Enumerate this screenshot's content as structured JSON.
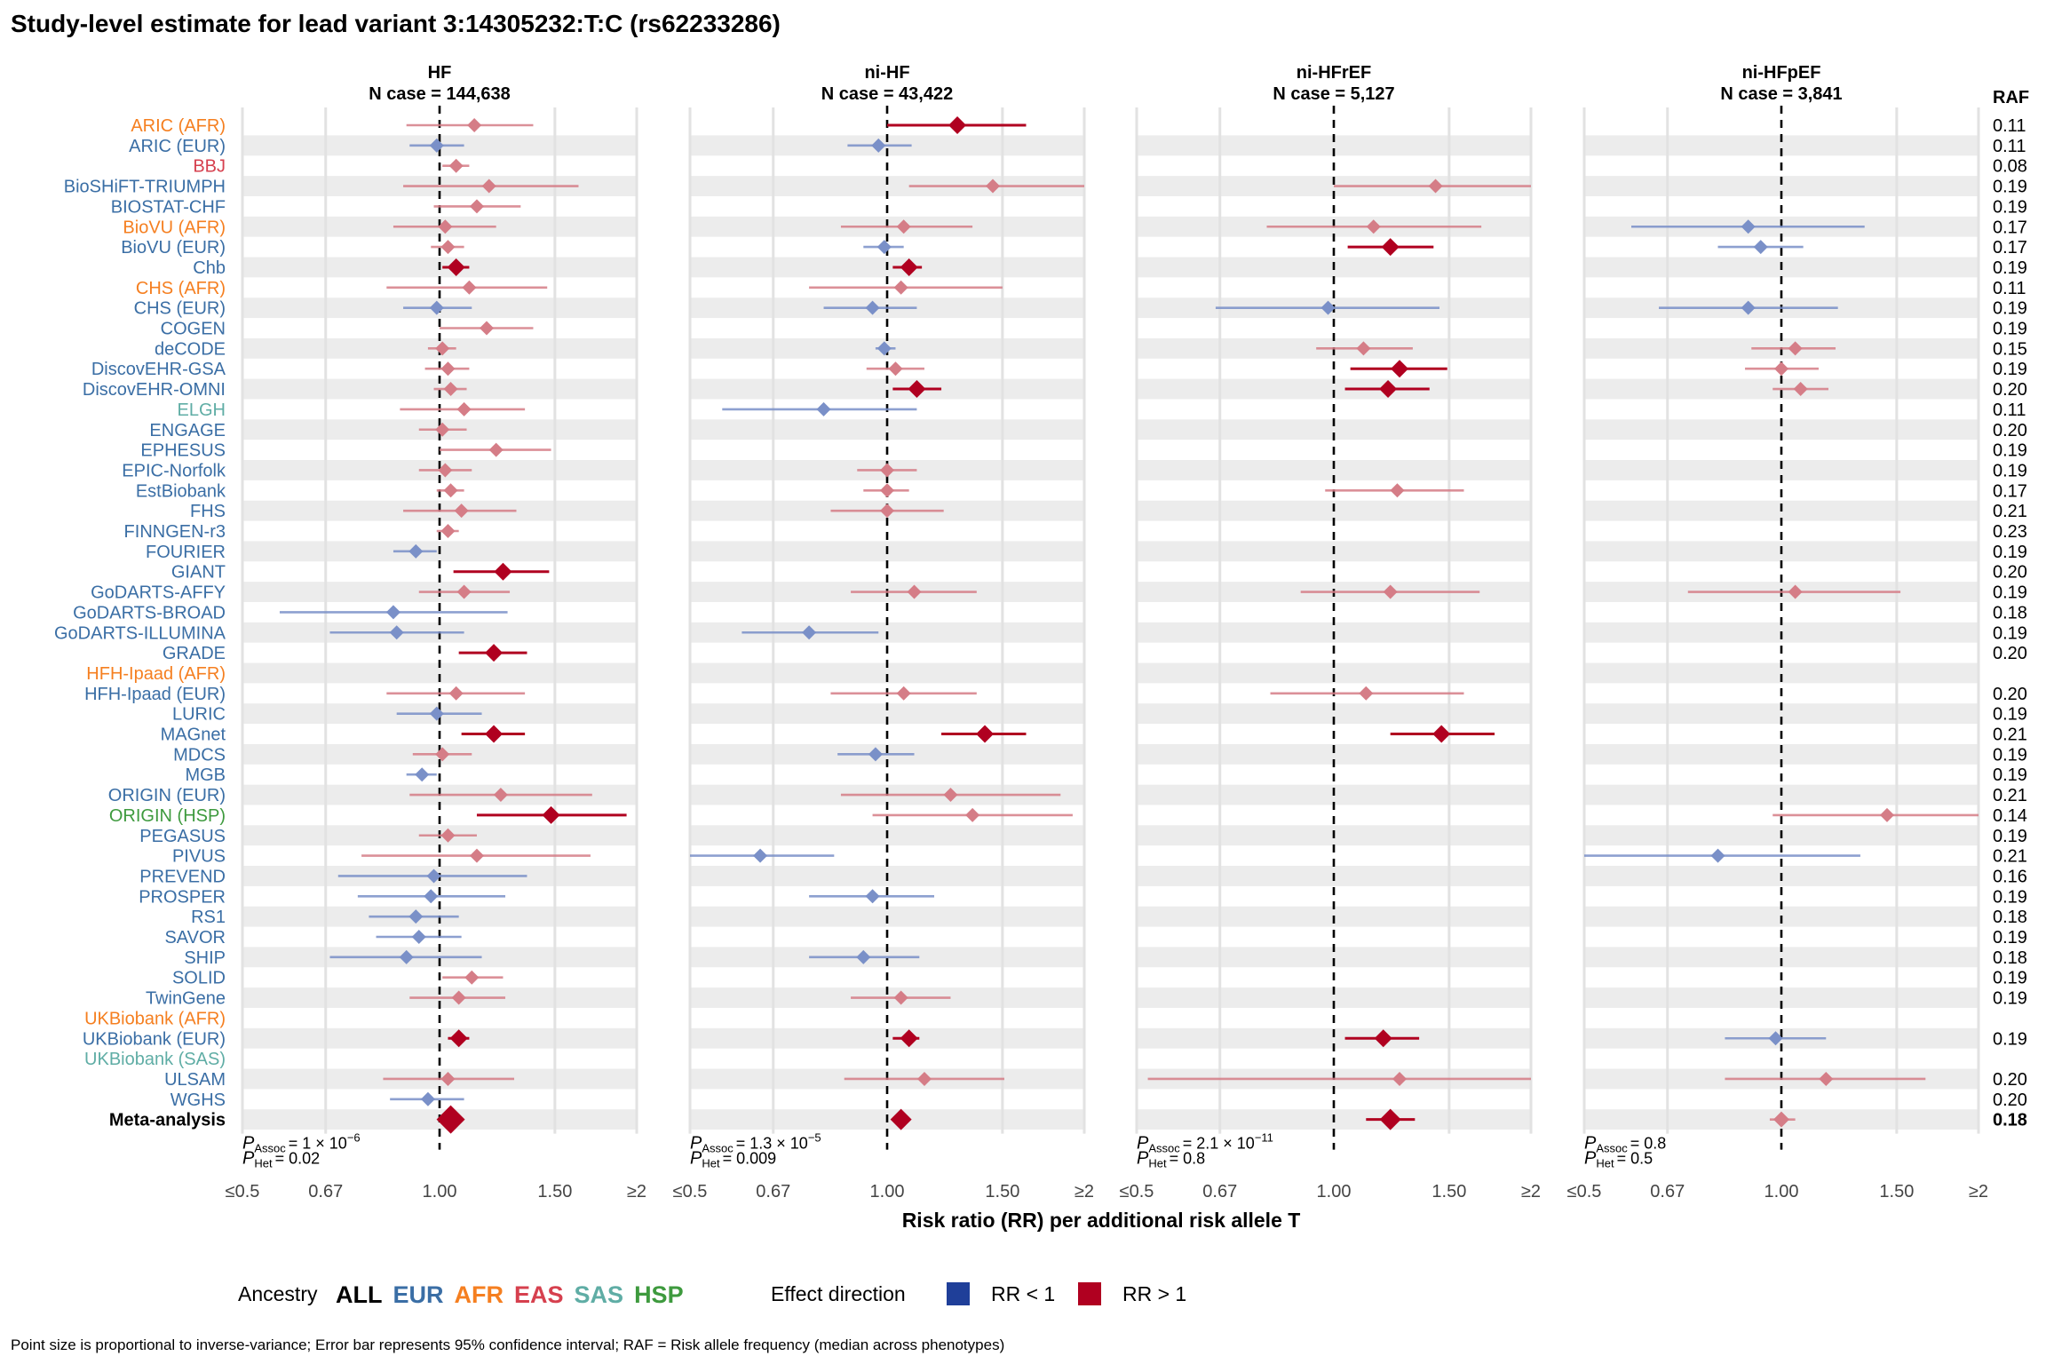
{
  "title": "Study-level estimate for lead variant 3:14305232:T:C (rs62233286)",
  "colors": {
    "EUR": "#3a6ea5",
    "AFR": "#f57f20",
    "EAS": "#d6404e",
    "SAS": "#5fada5",
    "HSP": "#3e9a3e",
    "ALL": "#000000",
    "rr_below": "#1f3f99",
    "rr_above": "#b00020"
  },
  "raf_header": "RAF",
  "x_axis_title": "Risk ratio (RR) per additional risk allele T",
  "x_ticks": [
    "≤0.5",
    "0.67",
    "1.00",
    "1.50",
    "≥2"
  ],
  "legend": {
    "ancestry_label": "Ancestry",
    "ancestries": [
      "ALL",
      "EUR",
      "AFR",
      "EAS",
      "SAS",
      "HSP"
    ],
    "effect_label": "Effect direction",
    "rr_below_label": "RR < 1",
    "rr_above_label": "RR > 1"
  },
  "footnote": "Point size is proportional to inverse-variance; Error bar represents 95% confidence interval; RAF = Risk allele frequency (median across phenotypes)",
  "chart_data": {
    "type": "forest",
    "x_scale": "log",
    "xlim": [
      0.5,
      2
    ],
    "reference_line": 1.0,
    "studies": [
      {
        "name": "ARIC (AFR)",
        "ancestry": "AFR",
        "raf": "0.11"
      },
      {
        "name": "ARIC (EUR)",
        "ancestry": "EUR",
        "raf": "0.11"
      },
      {
        "name": "BBJ",
        "ancestry": "EAS",
        "raf": "0.08"
      },
      {
        "name": "BioSHiFT-TRIUMPH",
        "ancestry": "EUR",
        "raf": "0.19"
      },
      {
        "name": "BIOSTAT-CHF",
        "ancestry": "EUR",
        "raf": "0.19"
      },
      {
        "name": "BioVU (AFR)",
        "ancestry": "AFR",
        "raf": "0.17"
      },
      {
        "name": "BioVU (EUR)",
        "ancestry": "EUR",
        "raf": "0.17"
      },
      {
        "name": "Chb",
        "ancestry": "EUR",
        "raf": "0.19"
      },
      {
        "name": "CHS (AFR)",
        "ancestry": "AFR",
        "raf": "0.11"
      },
      {
        "name": "CHS (EUR)",
        "ancestry": "EUR",
        "raf": "0.19"
      },
      {
        "name": "COGEN",
        "ancestry": "EUR",
        "raf": "0.19"
      },
      {
        "name": "deCODE",
        "ancestry": "EUR",
        "raf": "0.15"
      },
      {
        "name": "DiscovEHR-GSA",
        "ancestry": "EUR",
        "raf": "0.19"
      },
      {
        "name": "DiscovEHR-OMNI",
        "ancestry": "EUR",
        "raf": "0.20"
      },
      {
        "name": "ELGH",
        "ancestry": "SAS",
        "raf": "0.11"
      },
      {
        "name": "ENGAGE",
        "ancestry": "EUR",
        "raf": "0.20"
      },
      {
        "name": "EPHESUS",
        "ancestry": "EUR",
        "raf": "0.19"
      },
      {
        "name": "EPIC-Norfolk",
        "ancestry": "EUR",
        "raf": "0.19"
      },
      {
        "name": "EstBiobank",
        "ancestry": "EUR",
        "raf": "0.17"
      },
      {
        "name": "FHS",
        "ancestry": "EUR",
        "raf": "0.21"
      },
      {
        "name": "FINNGEN-r3",
        "ancestry": "EUR",
        "raf": "0.23"
      },
      {
        "name": "FOURIER",
        "ancestry": "EUR",
        "raf": "0.19"
      },
      {
        "name": "GIANT",
        "ancestry": "EUR",
        "raf": "0.20"
      },
      {
        "name": "GoDARTS-AFFY",
        "ancestry": "EUR",
        "raf": "0.19"
      },
      {
        "name": "GoDARTS-BROAD",
        "ancestry": "EUR",
        "raf": "0.18"
      },
      {
        "name": "GoDARTS-ILLUMINA",
        "ancestry": "EUR",
        "raf": "0.19"
      },
      {
        "name": "GRADE",
        "ancestry": "EUR",
        "raf": "0.20"
      },
      {
        "name": "HFH-Ipaad (AFR)",
        "ancestry": "AFR",
        "raf": ""
      },
      {
        "name": "HFH-Ipaad (EUR)",
        "ancestry": "EUR",
        "raf": "0.20"
      },
      {
        "name": "LURIC",
        "ancestry": "EUR",
        "raf": "0.19"
      },
      {
        "name": "MAGnet",
        "ancestry": "EUR",
        "raf": "0.21"
      },
      {
        "name": "MDCS",
        "ancestry": "EUR",
        "raf": "0.19"
      },
      {
        "name": "MGB",
        "ancestry": "EUR",
        "raf": "0.19"
      },
      {
        "name": "ORIGIN (EUR)",
        "ancestry": "EUR",
        "raf": "0.21"
      },
      {
        "name": "ORIGIN (HSP)",
        "ancestry": "HSP",
        "raf": "0.14"
      },
      {
        "name": "PEGASUS",
        "ancestry": "EUR",
        "raf": "0.19"
      },
      {
        "name": "PIVUS",
        "ancestry": "EUR",
        "raf": "0.21"
      },
      {
        "name": "PREVEND",
        "ancestry": "EUR",
        "raf": "0.16"
      },
      {
        "name": "PROSPER",
        "ancestry": "EUR",
        "raf": "0.19"
      },
      {
        "name": "RS1",
        "ancestry": "EUR",
        "raf": "0.18"
      },
      {
        "name": "SAVOR",
        "ancestry": "EUR",
        "raf": "0.19"
      },
      {
        "name": "SHIP",
        "ancestry": "EUR",
        "raf": "0.18"
      },
      {
        "name": "SOLID",
        "ancestry": "EUR",
        "raf": "0.19"
      },
      {
        "name": "TwinGene",
        "ancestry": "EUR",
        "raf": "0.19"
      },
      {
        "name": "UKBiobank (AFR)",
        "ancestry": "AFR",
        "raf": ""
      },
      {
        "name": "UKBiobank (EUR)",
        "ancestry": "EUR",
        "raf": "0.19"
      },
      {
        "name": "UKBiobank (SAS)",
        "ancestry": "SAS",
        "raf": ""
      },
      {
        "name": "ULSAM",
        "ancestry": "EUR",
        "raf": "0.20"
      },
      {
        "name": "WGHS",
        "ancestry": "EUR",
        "raf": "0.20"
      },
      {
        "name": "Meta-analysis",
        "ancestry": "ALL",
        "raf": "0.18",
        "bold": true
      }
    ],
    "panels": [
      {
        "title": "HF",
        "n_case": "N case = 144,638",
        "p_assoc": "= 1 × 10",
        "p_assoc_exp": "−6",
        "p_het": "= 0.02",
        "estimates": [
          [
            1.13,
            0.89,
            1.39,
            "light"
          ],
          [
            0.99,
            0.9,
            1.09,
            "light"
          ],
          [
            1.06,
            1.01,
            1.11,
            "light"
          ],
          [
            1.19,
            0.88,
            1.63,
            "light"
          ],
          [
            1.14,
            0.98,
            1.33,
            "light"
          ],
          [
            1.02,
            0.85,
            1.22,
            "light"
          ],
          [
            1.03,
            0.97,
            1.09,
            "light"
          ],
          [
            1.06,
            1.01,
            1.11,
            "strong"
          ],
          [
            1.11,
            0.83,
            1.46,
            "light"
          ],
          [
            0.99,
            0.88,
            1.12,
            "light"
          ],
          [
            1.18,
            1.0,
            1.39,
            "light"
          ],
          [
            1.01,
            0.96,
            1.06,
            "light"
          ],
          [
            1.03,
            0.95,
            1.11,
            "light"
          ],
          [
            1.04,
            0.98,
            1.1,
            "light"
          ],
          [
            1.09,
            0.87,
            1.35,
            "light"
          ],
          [
            1.01,
            0.93,
            1.1,
            "light"
          ],
          [
            1.22,
            1.0,
            1.48,
            "light"
          ],
          [
            1.02,
            0.93,
            1.12,
            "light"
          ],
          [
            1.04,
            0.99,
            1.09,
            "light"
          ],
          [
            1.08,
            0.88,
            1.31,
            "light"
          ],
          [
            1.03,
            0.99,
            1.07,
            "light"
          ],
          [
            0.92,
            0.85,
            0.99,
            "light"
          ],
          [
            1.25,
            1.05,
            1.47,
            "strong"
          ],
          [
            1.09,
            0.93,
            1.28,
            "light"
          ],
          [
            0.85,
            0.57,
            1.27,
            "light"
          ],
          [
            0.86,
            0.68,
            1.09,
            "light"
          ],
          [
            1.21,
            1.07,
            1.36,
            "strong"
          ],
          null,
          [
            1.06,
            0.83,
            1.35,
            "light"
          ],
          [
            0.99,
            0.86,
            1.16,
            "light"
          ],
          [
            1.21,
            1.08,
            1.35,
            "strong"
          ],
          [
            1.01,
            0.91,
            1.12,
            "light"
          ],
          [
            0.94,
            0.89,
            0.99,
            "light"
          ],
          [
            1.24,
            0.9,
            1.71,
            "light"
          ],
          [
            1.48,
            1.14,
            1.93,
            "strong"
          ],
          [
            1.03,
            0.93,
            1.14,
            "light"
          ],
          [
            1.14,
            0.76,
            1.7,
            "light"
          ],
          [
            0.98,
            0.7,
            1.36,
            "light"
          ],
          [
            0.97,
            0.75,
            1.26,
            "light"
          ],
          [
            0.92,
            0.78,
            1.07,
            "light"
          ],
          [
            0.93,
            0.8,
            1.08,
            "light"
          ],
          [
            0.89,
            0.68,
            1.16,
            "light"
          ],
          [
            1.12,
            1.01,
            1.25,
            "light"
          ],
          [
            1.07,
            0.9,
            1.26,
            "light"
          ],
          null,
          [
            1.07,
            1.03,
            1.11,
            "strong"
          ],
          null,
          [
            1.03,
            0.82,
            1.3,
            "light"
          ],
          [
            0.96,
            0.84,
            1.09,
            "light"
          ],
          [
            1.04,
            1.01,
            1.07,
            "strong"
          ]
        ]
      },
      {
        "title": "ni-HF",
        "n_case": "N case = 43,422",
        "p_assoc": "= 1.3 × 10",
        "p_assoc_exp": "−5",
        "p_het": "= 0.009",
        "estimates": [
          [
            1.28,
            1.0,
            1.63,
            "strong"
          ],
          [
            0.97,
            0.87,
            1.09,
            "light"
          ],
          null,
          [
            1.45,
            1.08,
            2.0,
            "light"
          ],
          null,
          [
            1.06,
            0.85,
            1.35,
            "light"
          ],
          [
            0.99,
            0.92,
            1.06,
            "light"
          ],
          [
            1.08,
            1.02,
            1.13,
            "strong"
          ],
          [
            1.05,
            0.76,
            1.5,
            "light"
          ],
          [
            0.95,
            0.8,
            1.11,
            "light"
          ],
          null,
          [
            0.99,
            0.96,
            1.03,
            "light"
          ],
          [
            1.03,
            0.93,
            1.14,
            "light"
          ],
          [
            1.11,
            1.02,
            1.21,
            "strong"
          ],
          [
            0.8,
            0.56,
            1.11,
            "light"
          ],
          null,
          null,
          [
            1.0,
            0.9,
            1.11,
            "light"
          ],
          [
            1.0,
            0.92,
            1.08,
            "light"
          ],
          [
            1.0,
            0.82,
            1.22,
            "light"
          ],
          null,
          null,
          null,
          [
            1.1,
            0.88,
            1.37,
            "light"
          ],
          null,
          [
            0.76,
            0.6,
            0.97,
            "light"
          ],
          null,
          null,
          [
            1.06,
            0.82,
            1.37,
            "light"
          ],
          null,
          [
            1.41,
            1.21,
            1.63,
            "strong"
          ],
          [
            0.96,
            0.84,
            1.1,
            "light"
          ],
          null,
          [
            1.25,
            0.85,
            1.84,
            "light"
          ],
          [
            1.35,
            0.95,
            1.92,
            "light"
          ],
          null,
          [
            0.64,
            0.5,
            0.83,
            "light"
          ],
          null,
          [
            0.95,
            0.76,
            1.18,
            "light"
          ],
          null,
          null,
          [
            0.92,
            0.76,
            1.12,
            "light"
          ],
          null,
          [
            1.05,
            0.88,
            1.25,
            "light"
          ],
          null,
          [
            1.08,
            1.02,
            1.12,
            "strong"
          ],
          null,
          [
            1.14,
            0.86,
            1.51,
            "light"
          ],
          null,
          [
            1.05,
            1.02,
            1.08,
            "strong"
          ]
        ]
      },
      {
        "title": "ni-HFrEF",
        "n_case": "N case = 5,127",
        "p_assoc": "= 2.1 × 10",
        "p_assoc_exp": "−11",
        "p_het": "= 0.8",
        "estimates": [
          null,
          null,
          null,
          [
            1.43,
            1.0,
            2.0,
            "light"
          ],
          null,
          [
            1.15,
            0.79,
            1.68,
            "light"
          ],
          [
            1.22,
            1.05,
            1.42,
            "strong"
          ],
          null,
          null,
          [
            0.98,
            0.66,
            1.45,
            "light"
          ],
          null,
          [
            1.11,
            0.94,
            1.32,
            "light"
          ],
          [
            1.26,
            1.06,
            1.49,
            "strong"
          ],
          [
            1.21,
            1.04,
            1.4,
            "strong"
          ],
          null,
          null,
          null,
          null,
          [
            1.25,
            0.97,
            1.58,
            "light"
          ],
          null,
          null,
          null,
          null,
          [
            1.22,
            0.89,
            1.67,
            "light"
          ],
          null,
          null,
          null,
          null,
          [
            1.12,
            0.8,
            1.58,
            "light"
          ],
          null,
          [
            1.46,
            1.22,
            1.76,
            "strong"
          ],
          null,
          null,
          null,
          null,
          null,
          null,
          null,
          null,
          null,
          null,
          null,
          null,
          null,
          null,
          [
            1.19,
            1.04,
            1.35,
            "strong"
          ],
          null,
          [
            1.26,
            0.52,
            2.0,
            "light"
          ],
          null,
          [
            1.22,
            1.12,
            1.33,
            "strong"
          ]
        ]
      },
      {
        "title": "ni-HFpEF",
        "n_case": "N case = 3,841",
        "p_assoc": "= 0.8",
        "p_assoc_exp": "",
        "p_het": "= 0.5",
        "estimates": [
          null,
          null,
          null,
          null,
          null,
          [
            0.89,
            0.59,
            1.34,
            "light"
          ],
          [
            0.93,
            0.8,
            1.08,
            "light"
          ],
          null,
          null,
          [
            0.89,
            0.65,
            1.22,
            "light"
          ],
          null,
          [
            1.05,
            0.9,
            1.21,
            "light"
          ],
          [
            1.0,
            0.88,
            1.14,
            "light"
          ],
          [
            1.07,
            0.97,
            1.18,
            "light"
          ],
          null,
          null,
          null,
          null,
          null,
          null,
          null,
          null,
          null,
          [
            1.05,
            0.72,
            1.52,
            "light"
          ],
          null,
          null,
          null,
          null,
          null,
          null,
          null,
          null,
          null,
          null,
          [
            1.45,
            0.97,
            2.0,
            "light"
          ],
          null,
          [
            0.8,
            0.5,
            1.32,
            "light"
          ],
          null,
          null,
          null,
          null,
          null,
          null,
          null,
          null,
          [
            0.98,
            0.82,
            1.17,
            "light"
          ],
          null,
          [
            1.17,
            0.82,
            1.66,
            "light"
          ],
          null,
          [
            1.0,
            0.96,
            1.05,
            "light"
          ]
        ]
      }
    ]
  }
}
